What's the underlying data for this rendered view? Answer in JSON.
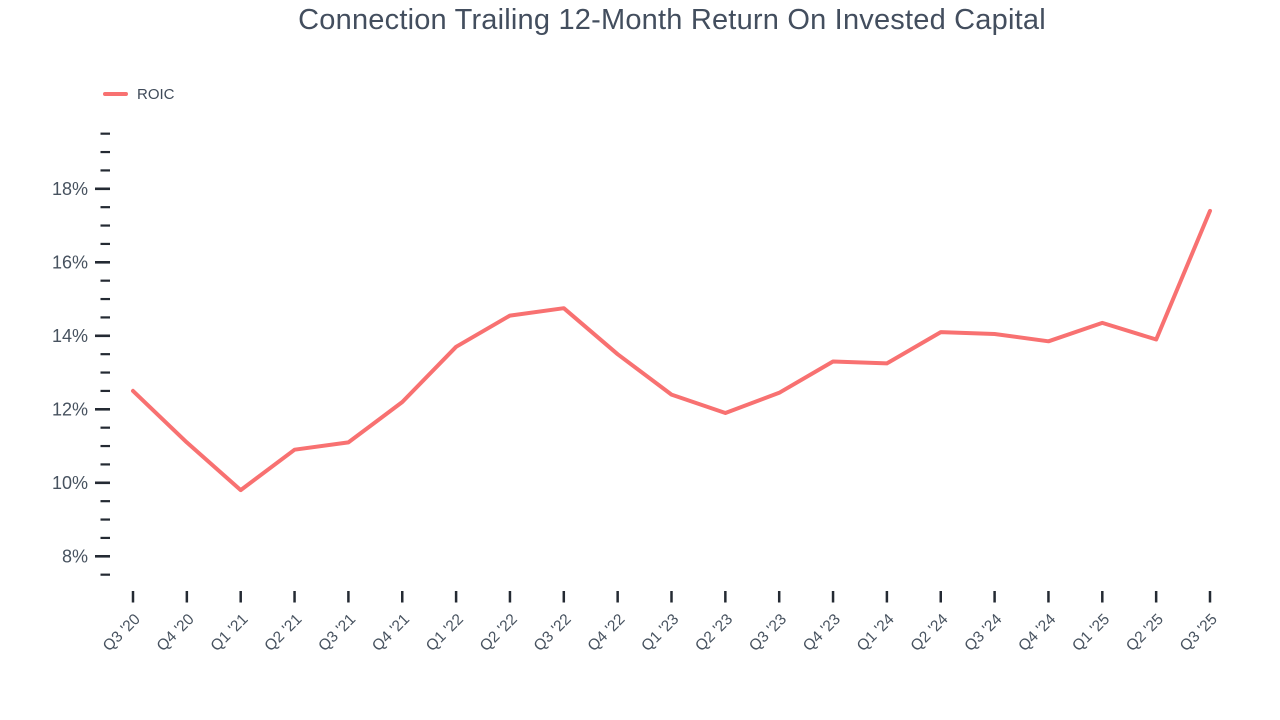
{
  "title": "Connection Trailing 12-Month Return On Invested Capital",
  "legend": {
    "label": "ROIC",
    "color": "#F87171"
  },
  "colors": {
    "line": "#F87171",
    "title_text": "#434E5E",
    "axis_text": "#47525F",
    "tick": "#242A33",
    "background": "#FFFFFF"
  },
  "chart_data": {
    "type": "line",
    "title": "Connection Trailing 12-Month Return On Invested Capital",
    "xlabel": "",
    "ylabel": "",
    "categories": [
      "Q3 '20",
      "Q4 '20",
      "Q1 '21",
      "Q2 '21",
      "Q3 '21",
      "Q4 '21",
      "Q1 '22",
      "Q2 '22",
      "Q3 '22",
      "Q4 '22",
      "Q1 '23",
      "Q2 '23",
      "Q3 '23",
      "Q4 '23",
      "Q1 '24",
      "Q2 '24",
      "Q3 '24",
      "Q4 '24",
      "Q1 '25",
      "Q2 '25",
      "Q3 '25"
    ],
    "series": [
      {
        "name": "ROIC",
        "values": [
          12.5,
          11.1,
          9.8,
          10.9,
          11.1,
          12.2,
          13.7,
          14.55,
          14.75,
          13.5,
          12.4,
          11.9,
          12.45,
          13.3,
          13.25,
          14.1,
          14.05,
          13.85,
          14.35,
          13.9,
          17.4
        ]
      }
    ],
    "ylim": [
      7.5,
      19.5
    ],
    "ytick_major": [
      8,
      10,
      12,
      14,
      16,
      18
    ],
    "ytick_minor_step": 0.5,
    "ytick_format": "percent",
    "grid": false,
    "legend_position": "top-left",
    "x_label_rotation": -45
  }
}
